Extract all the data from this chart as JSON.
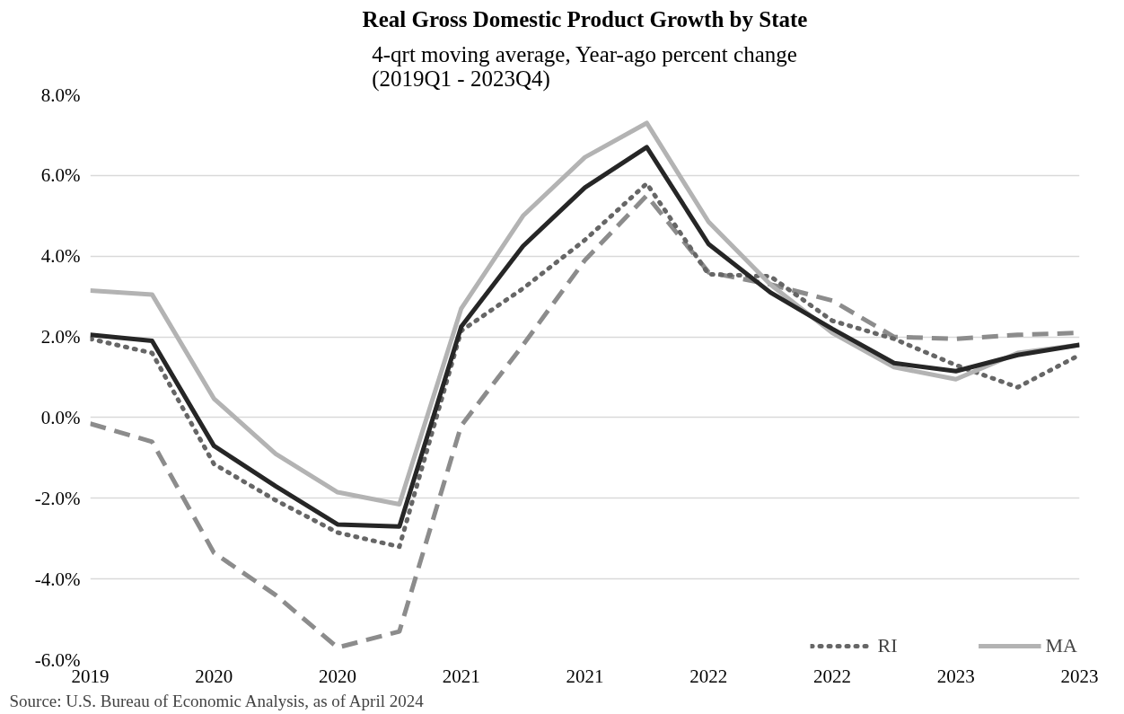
{
  "chart_data": {
    "type": "line",
    "title": "Real Gross Domestic Product Growth by State",
    "subtitle": "4-qrt moving average, Year-ago percent change\n(2019Q1 - 2023Q4)",
    "annotations": [
      "Source: U.S. Bureau of Economic Analysis, as of April 2024"
    ],
    "categories": [
      "2019",
      null,
      "2020",
      null,
      "2020",
      null,
      "2021",
      null,
      "2021",
      null,
      "2022",
      null,
      "2022",
      null,
      "2023",
      null,
      "2023"
    ],
    "ylim": [
      -6,
      8
    ],
    "yticks": [
      {
        "value": -6,
        "label": "-6.0%"
      },
      {
        "value": -4,
        "label": "-4.0%"
      },
      {
        "value": -2,
        "label": "-2.0%"
      },
      {
        "value": 0,
        "label": "0.0%"
      },
      {
        "value": 2,
        "label": "2.0%"
      },
      {
        "value": 4,
        "label": "4.0%"
      },
      {
        "value": 6,
        "label": "6.0%"
      },
      {
        "value": 8,
        "label": "8.0%"
      }
    ],
    "grid": "y",
    "legend": "bottom right",
    "marker": "none",
    "series": [
      {
        "color": "#8c8c8c",
        "line_style": "dashed",
        "values": [
          -0.15,
          -0.6,
          -3.35,
          -4.4,
          -5.7,
          -5.3,
          -0.2,
          1.8,
          3.9,
          5.5,
          3.6,
          3.3,
          2.9,
          2.0,
          1.95,
          2.05,
          2.1
        ]
      },
      {
        "name": "RI",
        "color": "#666666",
        "line_style": "dotted",
        "values": [
          1.95,
          1.6,
          -1.15,
          -2.05,
          -2.85,
          -3.2,
          2.15,
          3.2,
          4.4,
          5.8,
          3.55,
          3.5,
          2.4,
          1.95,
          1.3,
          0.75,
          1.55
        ]
      },
      {
        "name": "MA",
        "color": "#b3b3b3",
        "line_style": "solid",
        "values": [
          3.15,
          3.05,
          0.47,
          -0.9,
          -1.85,
          -2.15,
          2.7,
          5.0,
          6.45,
          7.3,
          4.85,
          3.3,
          2.1,
          1.25,
          0.95,
          1.6,
          1.8
        ]
      },
      {
        "color": "#262626",
        "line_style": "solid",
        "values": [
          2.05,
          1.9,
          -0.7,
          -1.7,
          -2.65,
          -2.7,
          2.25,
          4.25,
          5.7,
          6.7,
          4.3,
          3.1,
          2.2,
          1.35,
          1.15,
          1.55,
          1.8
        ]
      }
    ]
  }
}
